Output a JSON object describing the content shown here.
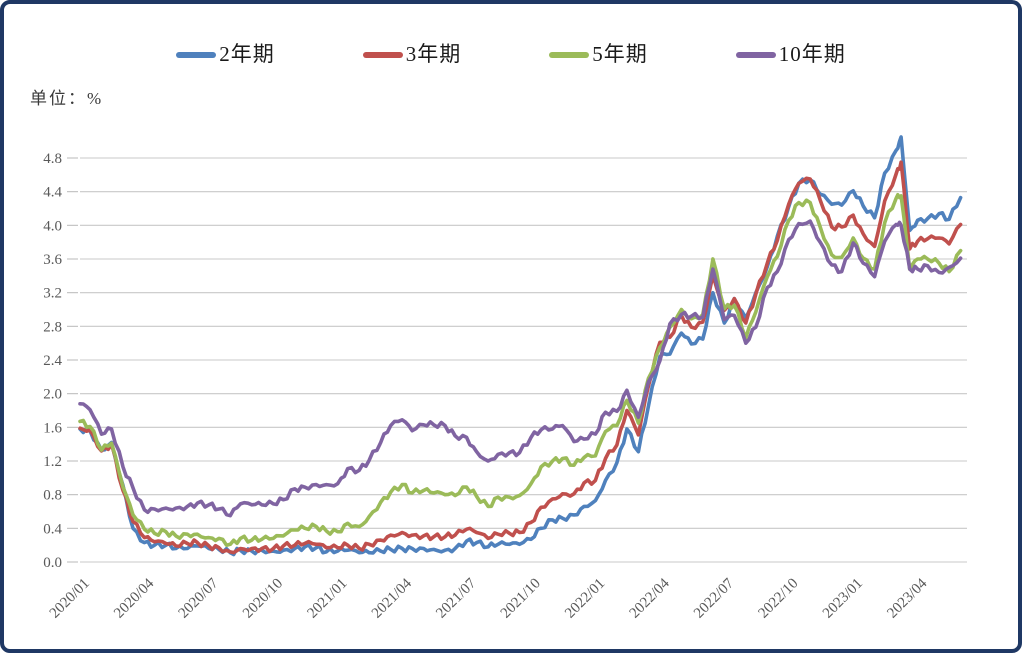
{
  "chart_data": {
    "type": "line",
    "title": "",
    "unit_label": "单位：%",
    "xlabel": "",
    "ylabel": "%",
    "ylim": [
      0.0,
      4.8
    ],
    "ytick_step": 0.4,
    "ytick_labels": [
      "0.0",
      "0.4",
      "0.8",
      "1.2",
      "1.6",
      "2.0",
      "2.4",
      "2.8",
      "3.2",
      "3.6",
      "4.0",
      "4.4",
      "4.8"
    ],
    "x_tick_labels": [
      "2020/01",
      "2020/04",
      "2020/07",
      "2020/10",
      "2021/01",
      "2021/04",
      "2021/07",
      "2021/10",
      "2022/01",
      "2022/04",
      "2022/07",
      "2022/10",
      "2023/01",
      "2023/04"
    ],
    "legend_position": "top",
    "grid": true,
    "grid_color": "#C8C8C8",
    "frame_color": "#1F3864",
    "dates": [
      "2020/01/01",
      "2020/01/15",
      "2020/02/01",
      "2020/02/15",
      "2020/03/01",
      "2020/03/15",
      "2020/04/01",
      "2020/04/15",
      "2020/05/01",
      "2020/05/15",
      "2020/06/01",
      "2020/06/15",
      "2020/07/01",
      "2020/07/15",
      "2020/08/01",
      "2020/08/15",
      "2020/09/01",
      "2020/09/15",
      "2020/10/01",
      "2020/10/15",
      "2020/11/01",
      "2020/11/15",
      "2020/12/01",
      "2020/12/15",
      "2021/01/01",
      "2021/01/15",
      "2021/02/01",
      "2021/02/15",
      "2021/03/01",
      "2021/03/15",
      "2021/04/01",
      "2021/04/15",
      "2021/05/01",
      "2021/05/15",
      "2021/06/01",
      "2021/06/15",
      "2021/07/01",
      "2021/07/15",
      "2021/08/01",
      "2021/08/15",
      "2021/09/01",
      "2021/09/15",
      "2021/10/01",
      "2021/10/15",
      "2021/11/01",
      "2021/11/15",
      "2021/12/01",
      "2021/12/15",
      "2022/01/01",
      "2022/01/15",
      "2022/02/01",
      "2022/02/15",
      "2022/03/01",
      "2022/03/15",
      "2022/04/01",
      "2022/04/15",
      "2022/05/01",
      "2022/05/15",
      "2022/06/01",
      "2022/06/15",
      "2022/07/01",
      "2022/07/15",
      "2022/08/01",
      "2022/08/15",
      "2022/09/01",
      "2022/09/15",
      "2022/10/01",
      "2022/10/15",
      "2022/11/01",
      "2022/11/15",
      "2022/12/01",
      "2022/12/15",
      "2023/01/01",
      "2023/01/15",
      "2023/02/01",
      "2023/02/15",
      "2023/03/01",
      "2023/03/08",
      "2023/03/20",
      "2023/04/01",
      "2023/04/15",
      "2023/05/01",
      "2023/05/15",
      "2023/06/01"
    ],
    "series": [
      {
        "name": "2年期",
        "color": "#4F81BD",
        "values": [
          1.58,
          1.56,
          1.33,
          1.42,
          0.91,
          0.4,
          0.23,
          0.2,
          0.2,
          0.16,
          0.16,
          0.19,
          0.16,
          0.15,
          0.11,
          0.14,
          0.13,
          0.14,
          0.13,
          0.14,
          0.16,
          0.18,
          0.17,
          0.12,
          0.13,
          0.14,
          0.11,
          0.11,
          0.13,
          0.15,
          0.16,
          0.16,
          0.16,
          0.15,
          0.14,
          0.16,
          0.25,
          0.23,
          0.18,
          0.21,
          0.21,
          0.21,
          0.27,
          0.4,
          0.5,
          0.52,
          0.56,
          0.66,
          0.73,
          0.97,
          1.18,
          1.58,
          1.31,
          1.85,
          2.44,
          2.47,
          2.72,
          2.59,
          2.65,
          3.2,
          2.84,
          3.13,
          2.9,
          3.2,
          3.51,
          3.87,
          4.22,
          4.5,
          4.54,
          4.37,
          4.25,
          4.24,
          4.41,
          4.23,
          4.09,
          4.62,
          4.89,
          5.05,
          3.94,
          4.06,
          4.08,
          4.14,
          4.07,
          4.33
        ]
      },
      {
        "name": "3年期",
        "color": "#C0504D",
        "values": [
          1.59,
          1.57,
          1.32,
          1.4,
          0.85,
          0.48,
          0.29,
          0.24,
          0.22,
          0.19,
          0.22,
          0.23,
          0.19,
          0.17,
          0.12,
          0.16,
          0.16,
          0.16,
          0.16,
          0.19,
          0.2,
          0.22,
          0.21,
          0.17,
          0.17,
          0.2,
          0.16,
          0.21,
          0.26,
          0.32,
          0.35,
          0.32,
          0.31,
          0.3,
          0.3,
          0.32,
          0.39,
          0.35,
          0.28,
          0.33,
          0.34,
          0.35,
          0.47,
          0.65,
          0.75,
          0.81,
          0.81,
          0.94,
          0.97,
          1.23,
          1.39,
          1.8,
          1.51,
          2.09,
          2.61,
          2.67,
          2.93,
          2.79,
          2.85,
          3.41,
          2.99,
          3.13,
          2.84,
          3.18,
          3.55,
          3.82,
          4.25,
          4.5,
          4.55,
          4.3,
          3.98,
          3.98,
          4.12,
          3.9,
          3.75,
          4.29,
          4.61,
          4.75,
          3.72,
          3.81,
          3.84,
          3.85,
          3.78,
          4.01
        ]
      },
      {
        "name": "5年期",
        "color": "#9BBB59",
        "values": [
          1.67,
          1.61,
          1.33,
          1.41,
          0.89,
          0.56,
          0.39,
          0.34,
          0.36,
          0.31,
          0.33,
          0.33,
          0.29,
          0.28,
          0.21,
          0.28,
          0.26,
          0.27,
          0.28,
          0.31,
          0.38,
          0.4,
          0.42,
          0.37,
          0.36,
          0.46,
          0.42,
          0.54,
          0.71,
          0.83,
          0.92,
          0.82,
          0.85,
          0.82,
          0.8,
          0.79,
          0.89,
          0.78,
          0.66,
          0.77,
          0.77,
          0.79,
          0.93,
          1.13,
          1.2,
          1.23,
          1.15,
          1.24,
          1.26,
          1.55,
          1.62,
          1.92,
          1.65,
          2.18,
          2.55,
          2.79,
          3.0,
          2.89,
          2.94,
          3.6,
          3.01,
          3.05,
          2.66,
          2.97,
          3.39,
          3.63,
          4.06,
          4.27,
          4.27,
          3.98,
          3.65,
          3.62,
          3.85,
          3.61,
          3.48,
          4.03,
          4.32,
          4.35,
          3.48,
          3.6,
          3.6,
          3.55,
          3.45,
          3.7
        ]
      },
      {
        "name": "10年期",
        "color": "#8064A2",
        "values": [
          1.88,
          1.81,
          1.52,
          1.58,
          1.13,
          0.88,
          0.62,
          0.63,
          0.64,
          0.64,
          0.66,
          0.7,
          0.68,
          0.63,
          0.55,
          0.69,
          0.68,
          0.68,
          0.69,
          0.74,
          0.87,
          0.89,
          0.92,
          0.92,
          0.93,
          1.11,
          1.09,
          1.21,
          1.42,
          1.62,
          1.69,
          1.56,
          1.63,
          1.63,
          1.62,
          1.5,
          1.48,
          1.31,
          1.2,
          1.28,
          1.3,
          1.3,
          1.48,
          1.57,
          1.58,
          1.62,
          1.43,
          1.46,
          1.52,
          1.78,
          1.79,
          2.04,
          1.72,
          2.14,
          2.39,
          2.83,
          2.94,
          2.92,
          2.91,
          3.48,
          2.88,
          2.93,
          2.6,
          2.79,
          3.26,
          3.45,
          3.83,
          4.02,
          4.05,
          3.8,
          3.53,
          3.45,
          3.79,
          3.55,
          3.39,
          3.81,
          4.01,
          4.0,
          3.48,
          3.48,
          3.52,
          3.44,
          3.5,
          3.61
        ]
      }
    ]
  }
}
